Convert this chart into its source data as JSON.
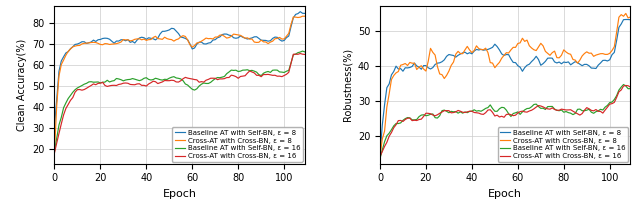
{
  "legend_labels": [
    "Baseline AT with Self-BN, ε = 8",
    "Cross-AT with Cross-BN, ε = 8",
    "Baseline AT with Self-BN, ε = 16",
    "Cross-AT with Cross-BN, ε = 16"
  ],
  "colors": [
    "#1f77b4",
    "#ff7f0e",
    "#2ca02c",
    "#d62728"
  ],
  "left_ylabel": "Clean Accuracy(%)",
  "right_ylabel": "Robustness(%)",
  "xlabel": "Epoch",
  "left_ylim": [
    13,
    88
  ],
  "right_ylim": [
    12,
    57
  ],
  "left_yticks": [
    20,
    30,
    40,
    50,
    60,
    70,
    80
  ],
  "right_yticks": [
    20,
    30,
    40,
    50
  ],
  "xticks": [
    0,
    20,
    40,
    60,
    80,
    100
  ],
  "figsize": [
    6.4,
    2.02
  ],
  "dpi": 100
}
